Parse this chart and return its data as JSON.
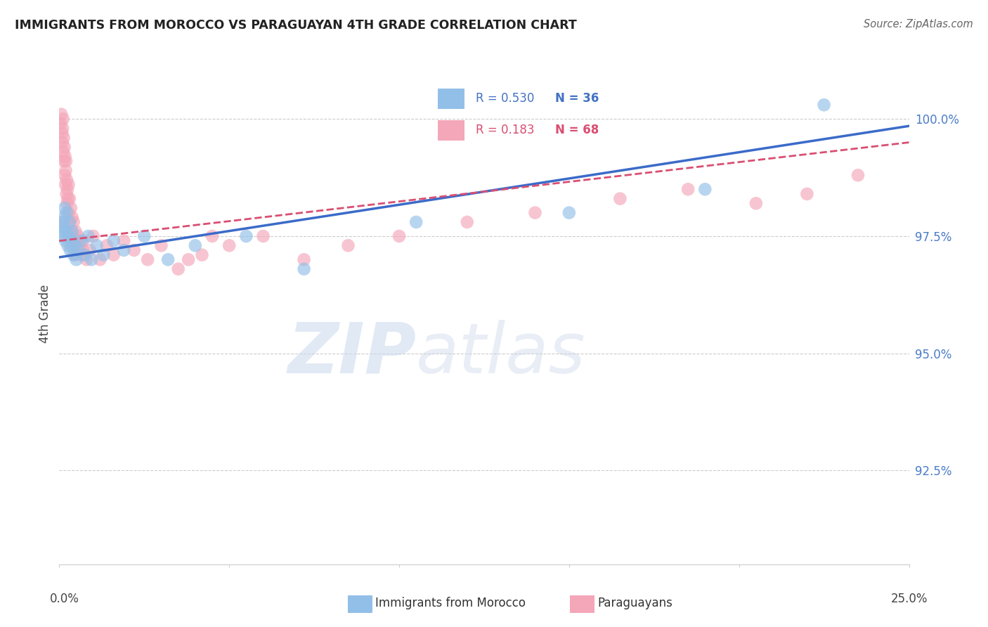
{
  "title": "IMMIGRANTS FROM MOROCCO VS PARAGUAYAN 4TH GRADE CORRELATION CHART",
  "source": "Source: ZipAtlas.com",
  "ylabel": "4th Grade",
  "xlim": [
    0.0,
    25.0
  ],
  "ylim": [
    90.5,
    101.2
  ],
  "yticks": [
    92.5,
    95.0,
    97.5,
    100.0
  ],
  "ytick_labels": [
    "92.5%",
    "95.0%",
    "97.5%",
    "100.0%"
  ],
  "legend_r1": "R = 0.530",
  "legend_n1": "N = 36",
  "legend_r2": "R = 0.183",
  "legend_n2": "N = 68",
  "color_blue": "#92bfe8",
  "color_pink": "#f4a7b9",
  "color_blue_line": "#3b6bc9",
  "color_pink_line": "#d94f72",
  "watermark_zip": "ZIP",
  "watermark_atlas": "atlas",
  "blue_scatter_x": [
    0.05,
    0.08,
    0.1,
    0.12,
    0.14,
    0.16,
    0.18,
    0.2,
    0.22,
    0.25,
    0.28,
    0.3,
    0.32,
    0.35,
    0.38,
    0.42,
    0.45,
    0.5,
    0.55,
    0.65,
    0.75,
    0.85,
    0.95,
    1.1,
    1.3,
    1.6,
    1.9,
    2.5,
    3.2,
    4.0,
    5.5,
    7.2,
    10.5,
    15.0,
    19.0,
    22.5
  ],
  "blue_scatter_y": [
    97.6,
    97.8,
    97.5,
    97.7,
    97.9,
    98.1,
    97.4,
    97.6,
    98.0,
    97.3,
    97.5,
    97.8,
    97.2,
    97.4,
    97.6,
    97.1,
    97.3,
    97.0,
    97.2,
    97.4,
    97.1,
    97.5,
    97.0,
    97.3,
    97.1,
    97.4,
    97.2,
    97.5,
    97.0,
    97.3,
    97.5,
    96.8,
    97.8,
    98.0,
    98.5,
    100.3
  ],
  "pink_scatter_x": [
    0.04,
    0.06,
    0.08,
    0.09,
    0.1,
    0.11,
    0.12,
    0.13,
    0.14,
    0.15,
    0.16,
    0.17,
    0.18,
    0.19,
    0.2,
    0.21,
    0.22,
    0.23,
    0.24,
    0.25,
    0.27,
    0.28,
    0.3,
    0.32,
    0.34,
    0.36,
    0.38,
    0.4,
    0.42,
    0.45,
    0.48,
    0.5,
    0.55,
    0.6,
    0.65,
    0.7,
    0.8,
    0.9,
    1.0,
    1.2,
    1.4,
    1.6,
    1.9,
    2.2,
    2.6,
    3.0,
    3.5,
    4.2,
    5.0,
    6.0,
    7.2,
    8.5,
    10.0,
    12.0,
    14.0,
    16.5,
    18.5,
    20.5,
    22.0,
    23.5,
    0.35,
    0.28,
    3.8,
    0.55,
    0.7,
    4.5,
    0.48,
    0.15
  ],
  "pink_scatter_y": [
    99.9,
    100.1,
    99.7,
    99.5,
    99.8,
    100.0,
    99.3,
    99.6,
    99.1,
    99.4,
    98.8,
    99.2,
    98.6,
    98.9,
    99.1,
    98.4,
    98.7,
    98.2,
    98.5,
    98.3,
    98.6,
    98.0,
    98.3,
    97.8,
    98.1,
    97.6,
    97.9,
    97.5,
    97.8,
    97.4,
    97.6,
    97.2,
    97.5,
    97.3,
    97.1,
    97.4,
    97.0,
    97.2,
    97.5,
    97.0,
    97.3,
    97.1,
    97.4,
    97.2,
    97.0,
    97.3,
    96.8,
    97.1,
    97.3,
    97.5,
    97.0,
    97.3,
    97.5,
    97.8,
    98.0,
    98.3,
    98.5,
    98.2,
    98.4,
    98.8,
    97.3,
    97.6,
    97.0,
    97.4,
    97.2,
    97.5,
    97.1,
    97.8
  ]
}
